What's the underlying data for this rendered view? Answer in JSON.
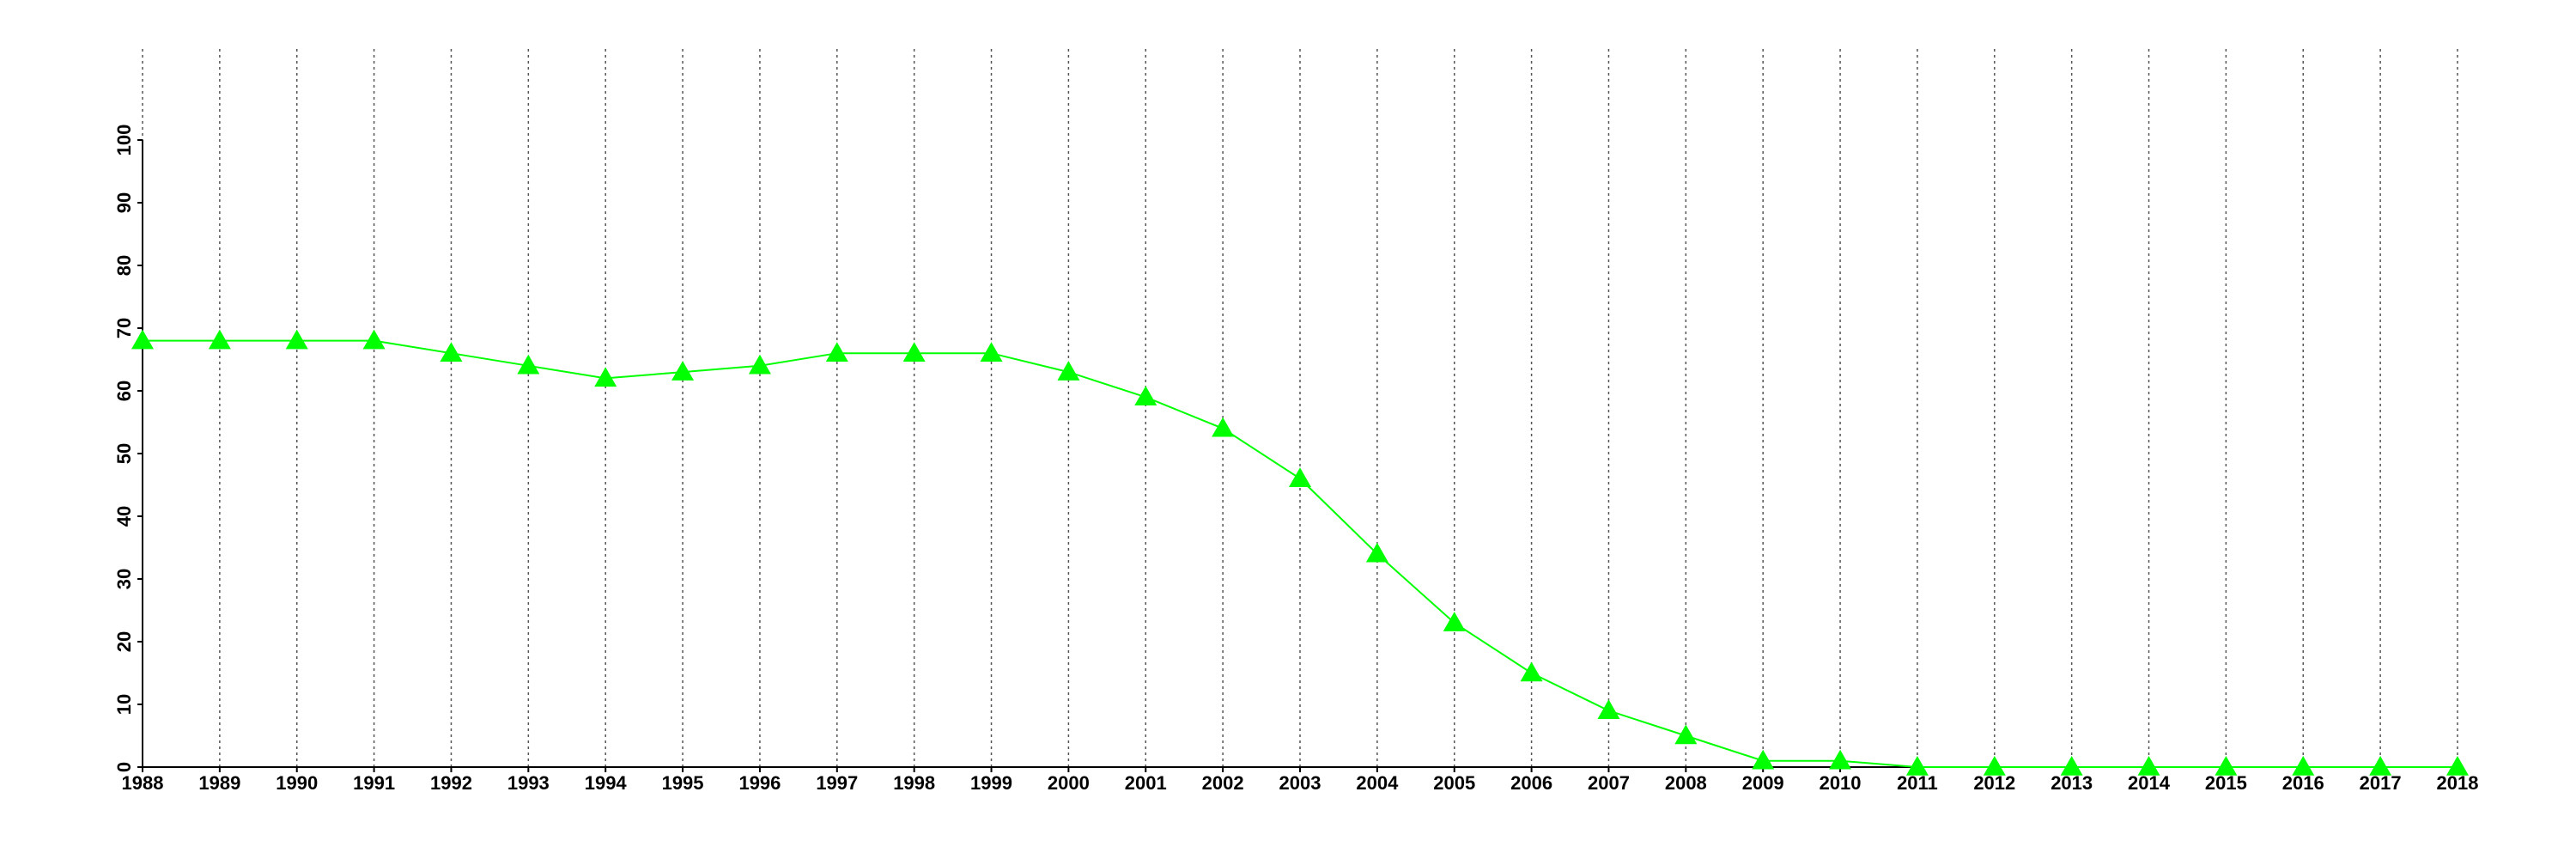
{
  "chart_data": {
    "type": "line",
    "x": [
      1988,
      1989,
      1990,
      1991,
      1992,
      1993,
      1994,
      1995,
      1996,
      1997,
      1998,
      1999,
      2000,
      2001,
      2002,
      2003,
      2004,
      2005,
      2006,
      2007,
      2008,
      2009,
      2010,
      2011,
      2012,
      2013,
      2014,
      2015,
      2016,
      2017,
      2018
    ],
    "series": [
      {
        "color": "#00ff00",
        "marker": "triangle",
        "values": [
          68,
          68,
          68,
          68,
          66,
          64,
          62,
          63,
          64,
          66,
          66,
          66,
          63,
          59,
          54,
          46,
          34,
          23,
          15,
          9,
          5,
          1,
          1,
          0,
          0,
          0,
          0,
          0,
          0,
          0,
          0
        ]
      }
    ],
    "xlim": [
      1988,
      2018
    ],
    "xticks": [
      1988,
      1989,
      1990,
      1991,
      1992,
      1993,
      1994,
      1995,
      1996,
      1997,
      1998,
      1999,
      2000,
      2001,
      2002,
      2003,
      2004,
      2005,
      2006,
      2007,
      2008,
      2009,
      2010,
      2011,
      2012,
      2013,
      2014,
      2015,
      2016,
      2017,
      2018
    ],
    "ylim": [
      0,
      100
    ],
    "yticks": [
      0,
      10,
      20,
      30,
      40,
      50,
      60,
      70,
      80,
      90,
      100
    ],
    "grid": "x"
  }
}
